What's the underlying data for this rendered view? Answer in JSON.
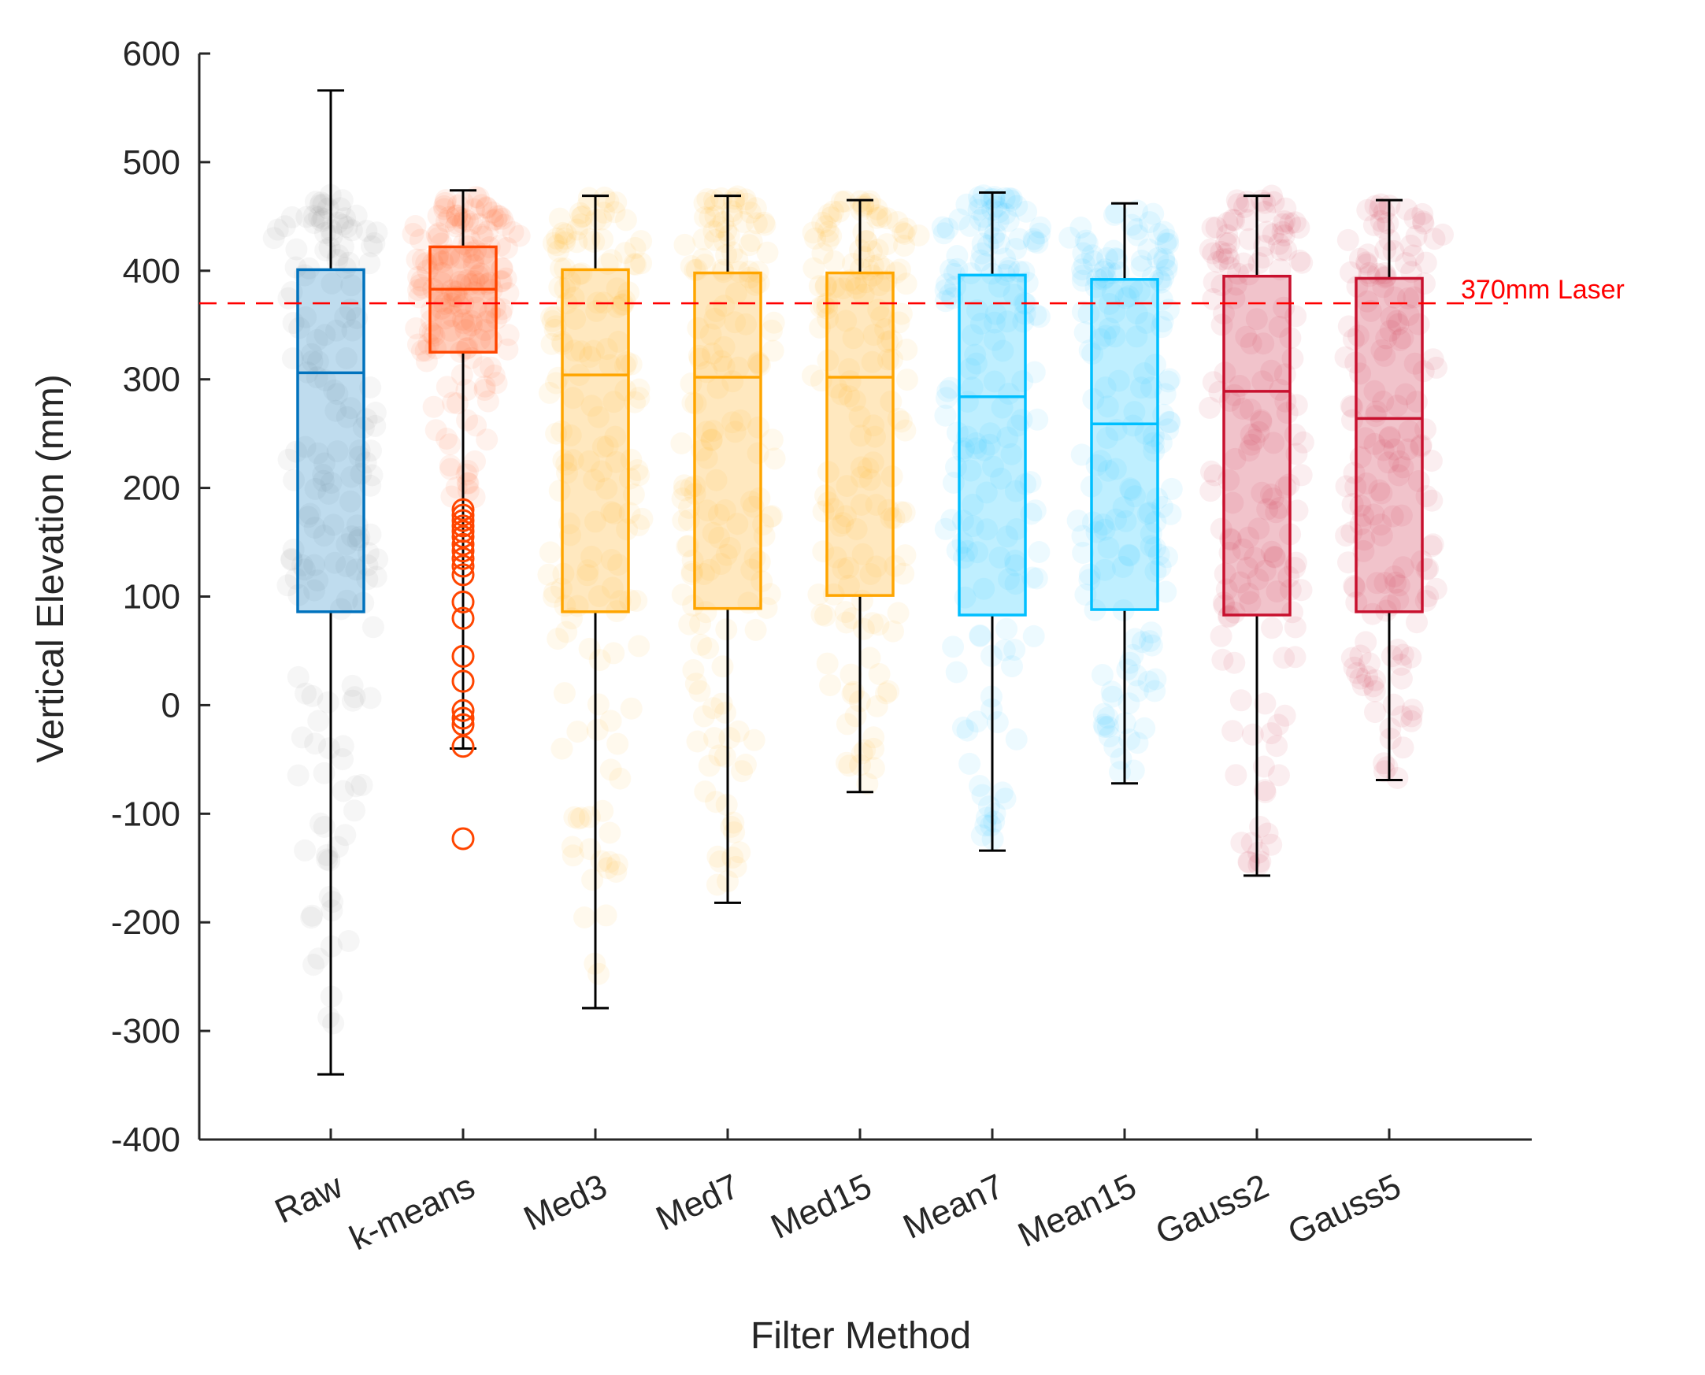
{
  "chart_data": {
    "type": "box",
    "title": "",
    "xlabel": "Filter Method",
    "ylabel": "Vertical Elevation (mm)",
    "ylim": [
      -400,
      600
    ],
    "yticks": [
      -400,
      -300,
      -200,
      -100,
      0,
      100,
      200,
      300,
      400,
      500,
      600
    ],
    "ytick_labels": [
      "-400",
      "-300",
      "-200",
      "-100",
      "0",
      "100",
      "200",
      "300",
      "400",
      "500",
      "600"
    ],
    "reference_line": {
      "value": 370,
      "label": "370mm Laser",
      "color": "#ff0000"
    },
    "categories": [
      "Raw",
      "k-means",
      "Med3",
      "Med7",
      "Med15",
      "Mean7",
      "Mean15",
      "Gauss2",
      "Gauss5"
    ],
    "series": [
      {
        "name": "Raw",
        "box_color": "#0072bd",
        "scatter_color": "#808080",
        "whisker_low": -340,
        "q1": 86,
        "median": 306,
        "q3": 401,
        "whisker_high": 566,
        "outliers": [],
        "scatter_min": -300,
        "scatter_max": 470
      },
      {
        "name": "k-means",
        "box_color": "#ff4500",
        "scatter_color": "#ff4500",
        "whisker_low": -40,
        "q1": 325,
        "median": 383,
        "q3": 422,
        "whisker_high": 474,
        "outliers": [
          180,
          175,
          170,
          165,
          160,
          155,
          148,
          142,
          135,
          128,
          120,
          95,
          80,
          45,
          22,
          -5,
          -12,
          -18,
          -38,
          -123
        ],
        "scatter_min": 190,
        "scatter_max": 470
      },
      {
        "name": "Med3",
        "box_color": "#ffa500",
        "scatter_color": "#ffa500",
        "whisker_low": -279,
        "q1": 86,
        "median": 304,
        "q3": 401,
        "whisker_high": 469,
        "outliers": [],
        "scatter_min": -250,
        "scatter_max": 470
      },
      {
        "name": "Med7",
        "box_color": "#ffa500",
        "scatter_color": "#ffa500",
        "whisker_low": -182,
        "q1": 89,
        "median": 302,
        "q3": 398,
        "whisker_high": 469,
        "outliers": [],
        "scatter_min": -170,
        "scatter_max": 470
      },
      {
        "name": "Med15",
        "box_color": "#ffa500",
        "scatter_color": "#ffa500",
        "whisker_low": -80,
        "q1": 101,
        "median": 302,
        "q3": 398,
        "whisker_high": 465,
        "outliers": [],
        "scatter_min": -75,
        "scatter_max": 465
      },
      {
        "name": "Mean7",
        "box_color": "#00bfff",
        "scatter_color": "#00bfff",
        "whisker_low": -134,
        "q1": 83,
        "median": 284,
        "q3": 396,
        "whisker_high": 472,
        "outliers": [],
        "scatter_min": -130,
        "scatter_max": 470
      },
      {
        "name": "Mean15",
        "box_color": "#00bfff",
        "scatter_color": "#00bfff",
        "whisker_low": -72,
        "q1": 88,
        "median": 259,
        "q3": 392,
        "whisker_high": 462,
        "outliers": [],
        "scatter_min": -70,
        "scatter_max": 462
      },
      {
        "name": "Gauss2",
        "box_color": "#c8102e",
        "scatter_color": "#c8102e",
        "whisker_low": -157,
        "q1": 83,
        "median": 289,
        "q3": 395,
        "whisker_high": 469,
        "outliers": [],
        "scatter_min": -150,
        "scatter_max": 470
      },
      {
        "name": "Gauss5",
        "box_color": "#c8102e",
        "scatter_color": "#c8102e",
        "whisker_low": -69,
        "q1": 86,
        "median": 264,
        "q3": 393,
        "whisker_high": 465,
        "outliers": [],
        "scatter_min": -68,
        "scatter_max": 465
      }
    ]
  }
}
